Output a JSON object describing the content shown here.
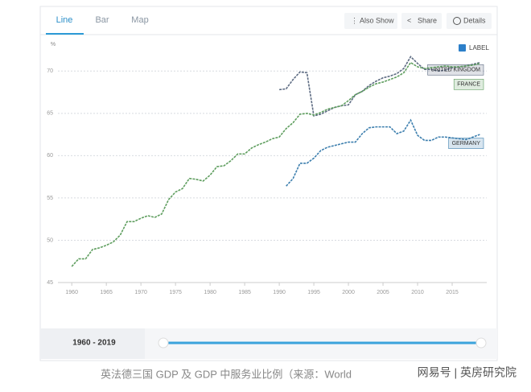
{
  "ui": {
    "tabs": [
      "Line",
      "Bar",
      "Map"
    ],
    "buttons": [
      "Also Show",
      "Share",
      "Details"
    ],
    "label_toggle": "LABEL",
    "range": "1960 - 2019",
    "caption": "英法德三国 GDP 及 GDP 中服务业比例（来源：World",
    "watermark": "网易号 | 英房研究院"
  },
  "chart_data": {
    "type": "line",
    "y_label": "%",
    "x": [
      1960,
      1961,
      1962,
      1963,
      1964,
      1965,
      1966,
      1967,
      1968,
      1969,
      1970,
      1971,
      1972,
      1973,
      1974,
      1975,
      1976,
      1977,
      1978,
      1979,
      1980,
      1981,
      1982,
      1983,
      1984,
      1985,
      1986,
      1987,
      1988,
      1989,
      1990,
      1991,
      1992,
      1993,
      1994,
      1995,
      1996,
      1997,
      1998,
      1999,
      2000,
      2001,
      2002,
      2003,
      2004,
      2005,
      2006,
      2007,
      2008,
      2009,
      2010,
      2011,
      2012,
      2013,
      2014,
      2015,
      2016,
      2017,
      2018,
      2019
    ],
    "xlim": [
      1958,
      2020
    ],
    "xticks": [
      1960,
      1965,
      1970,
      1975,
      1980,
      1985,
      1990,
      1995,
      2000,
      2005,
      2010,
      2015
    ],
    "ylim": [
      45,
      72.5
    ],
    "yticks": [
      45,
      50,
      55,
      60,
      65,
      70
    ],
    "grid": true,
    "series": [
      {
        "name": "UNITED KINGDOM",
        "color": "#5d6b82",
        "values": [
          null,
          null,
          null,
          null,
          null,
          null,
          null,
          null,
          null,
          null,
          null,
          null,
          null,
          null,
          null,
          null,
          null,
          null,
          null,
          null,
          null,
          null,
          null,
          null,
          null,
          null,
          null,
          null,
          null,
          null,
          67.8,
          67.9,
          69.0,
          69.9,
          69.8,
          64.7,
          64.9,
          65.3,
          65.7,
          65.9,
          66.0,
          67.2,
          67.6,
          68.3,
          68.8,
          69.2,
          69.4,
          69.7,
          70.3,
          71.7,
          70.9,
          70.2,
          70.2,
          70.0,
          70.1,
          70.4,
          70.5,
          70.6,
          70.8,
          71.0
        ]
      },
      {
        "name": "FRANCE",
        "color": "#5f9e5f",
        "values": [
          46.9,
          47.8,
          47.8,
          48.9,
          49.1,
          49.4,
          49.8,
          50.6,
          52.2,
          52.2,
          52.6,
          52.9,
          52.7,
          53.1,
          54.8,
          55.7,
          56.1,
          57.3,
          57.2,
          57.0,
          57.7,
          58.7,
          58.8,
          59.4,
          60.2,
          60.2,
          60.9,
          61.3,
          61.6,
          62.0,
          62.2,
          63.2,
          63.9,
          64.9,
          65.0,
          64.8,
          65.1,
          65.5,
          65.7,
          65.9,
          66.5,
          67.2,
          67.6,
          68.1,
          68.5,
          68.7,
          69.0,
          69.3,
          69.8,
          71.0,
          70.5,
          70.3,
          70.4,
          70.5,
          70.6,
          70.5,
          70.5,
          70.6,
          70.7,
          70.9
        ]
      },
      {
        "name": "GERMANY",
        "color": "#3d7fae",
        "values": [
          null,
          null,
          null,
          null,
          null,
          null,
          null,
          null,
          null,
          null,
          null,
          null,
          null,
          null,
          null,
          null,
          null,
          null,
          null,
          null,
          null,
          null,
          null,
          null,
          null,
          null,
          null,
          null,
          null,
          null,
          null,
          56.4,
          57.3,
          59.1,
          59.1,
          59.7,
          60.6,
          61.0,
          61.2,
          61.4,
          61.6,
          61.6,
          62.6,
          63.3,
          63.4,
          63.4,
          63.4,
          62.6,
          62.9,
          64.2,
          62.4,
          61.8,
          61.8,
          62.2,
          62.2,
          62.1,
          62.0,
          61.9,
          62.2,
          62.5
        ]
      }
    ]
  }
}
